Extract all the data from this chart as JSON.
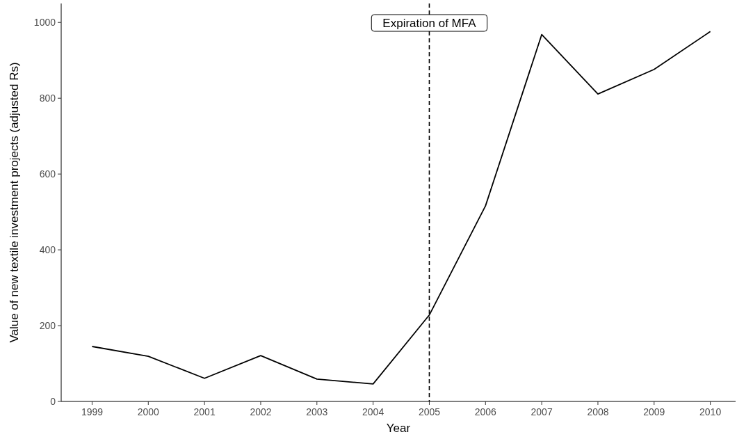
{
  "chart_data": {
    "type": "line",
    "xlabel": "Year",
    "ylabel": "Value of new textile investment projects (adjusted Rs)",
    "x": [
      1999,
      2000,
      2001,
      2002,
      2003,
      2004,
      2005,
      2006,
      2007,
      2008,
      2009,
      2010
    ],
    "series": [
      {
        "color": "#000000",
        "values": [
          145,
          119,
          61,
          121,
          59,
          46,
          228,
          516,
          968,
          811,
          876,
          976
        ]
      }
    ],
    "xlim": [
      1998.45,
      2010.45
    ],
    "ylim": [
      0,
      1050
    ],
    "xticks": [
      1999,
      2000,
      2001,
      2002,
      2003,
      2004,
      2005,
      2006,
      2007,
      2008,
      2009,
      2010
    ],
    "yticks": [
      0,
      200,
      400,
      600,
      800,
      1000
    ],
    "ref_lines": [
      {
        "axis": "x",
        "value": 2005,
        "label": "Expiration of MFA",
        "color": "#000000",
        "line_style": "dashed"
      }
    ],
    "grid": false
  }
}
